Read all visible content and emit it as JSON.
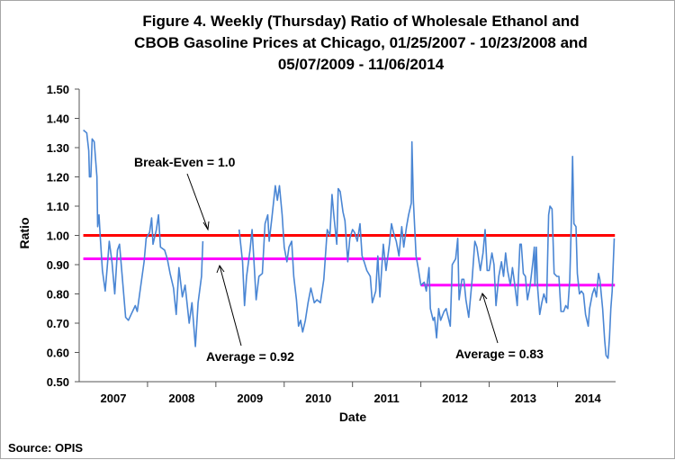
{
  "chart_data": {
    "type": "line",
    "title_lines": [
      "Figure 4. Weekly (Thursday) Ratio of Wholesale Ethanol and",
      "CBOB Gasoline Prices at Chicago, 01/25/2007 - 10/23/2008 and",
      "05/07/2009 - 11/06/2014"
    ],
    "xlabel": "Date",
    "ylabel": "Ratio",
    "ylim": [
      0.5,
      1.5
    ],
    "xlim": [
      2007.0,
      2014.85
    ],
    "yticks": [
      "0.50",
      "0.60",
      "0.70",
      "0.80",
      "0.90",
      "1.00",
      "1.10",
      "1.20",
      "1.30",
      "1.40",
      "1.50"
    ],
    "xticks": [
      "2007",
      "2008",
      "2009",
      "2010",
      "2011",
      "2012",
      "2013",
      "2014"
    ],
    "grid": false,
    "series": [
      {
        "name": "Ratio",
        "color": "#4a86d4",
        "segments": [
          [
            [
              2007.06,
              1.36
            ],
            [
              2007.11,
              1.35
            ],
            [
              2007.14,
              1.29
            ],
            [
              2007.15,
              1.2
            ],
            [
              2007.17,
              1.2
            ],
            [
              2007.19,
              1.33
            ],
            [
              2007.22,
              1.32
            ],
            [
              2007.26,
              1.2
            ],
            [
              2007.27,
              1.03
            ],
            [
              2007.29,
              1.07
            ],
            [
              2007.31,
              0.99
            ],
            [
              2007.34,
              0.88
            ],
            [
              2007.38,
              0.81
            ],
            [
              2007.41,
              0.89
            ],
            [
              2007.44,
              0.98
            ],
            [
              2007.48,
              0.91
            ],
            [
              2007.52,
              0.8
            ],
            [
              2007.56,
              0.95
            ],
            [
              2007.59,
              0.97
            ],
            [
              2007.63,
              0.86
            ],
            [
              2007.68,
              0.72
            ],
            [
              2007.72,
              0.71
            ],
            [
              2007.76,
              0.73
            ],
            [
              2007.82,
              0.76
            ],
            [
              2007.85,
              0.74
            ],
            [
              2007.89,
              0.81
            ],
            [
              2007.95,
              0.91
            ],
            [
              2007.98,
              0.99
            ],
            [
              2008.03,
              1.01
            ],
            [
              2008.06,
              1.06
            ],
            [
              2008.08,
              0.97
            ],
            [
              2008.13,
              1.02
            ],
            [
              2008.16,
              1.07
            ],
            [
              2008.19,
              0.96
            ],
            [
              2008.25,
              0.95
            ],
            [
              2008.29,
              0.92
            ],
            [
              2008.33,
              0.87
            ],
            [
              2008.38,
              0.82
            ],
            [
              2008.42,
              0.73
            ],
            [
              2008.46,
              0.89
            ],
            [
              2008.51,
              0.79
            ],
            [
              2008.55,
              0.83
            ],
            [
              2008.61,
              0.7
            ],
            [
              2008.65,
              0.77
            ],
            [
              2008.7,
              0.62
            ],
            [
              2008.74,
              0.77
            ],
            [
              2008.79,
              0.86
            ],
            [
              2008.81,
              0.98
            ]
          ],
          [
            [
              2009.34,
              1.02
            ],
            [
              2009.39,
              0.91
            ],
            [
              2009.42,
              0.76
            ],
            [
              2009.45,
              0.86
            ],
            [
              2009.5,
              0.95
            ],
            [
              2009.53,
              1.02
            ],
            [
              2009.56,
              0.9
            ],
            [
              2009.59,
              0.78
            ],
            [
              2009.63,
              0.86
            ],
            [
              2009.68,
              0.87
            ],
            [
              2009.72,
              1.04
            ],
            [
              2009.76,
              1.07
            ],
            [
              2009.78,
              0.98
            ],
            [
              2009.82,
              1.06
            ],
            [
              2009.87,
              1.17
            ],
            [
              2009.9,
              1.12
            ],
            [
              2009.93,
              1.17
            ],
            [
              2009.97,
              1.07
            ],
            [
              2010.0,
              0.96
            ],
            [
              2010.04,
              0.91
            ],
            [
              2010.07,
              0.96
            ],
            [
              2010.11,
              0.98
            ],
            [
              2010.14,
              0.86
            ],
            [
              2010.18,
              0.78
            ],
            [
              2010.21,
              0.69
            ],
            [
              2010.24,
              0.71
            ],
            [
              2010.27,
              0.67
            ],
            [
              2010.31,
              0.71
            ],
            [
              2010.35,
              0.77
            ],
            [
              2010.39,
              0.82
            ],
            [
              2010.44,
              0.77
            ],
            [
              2010.48,
              0.78
            ],
            [
              2010.53,
              0.77
            ],
            [
              2010.58,
              0.85
            ],
            [
              2010.63,
              1.02
            ],
            [
              2010.67,
              1.0
            ],
            [
              2010.7,
              1.14
            ],
            [
              2010.73,
              1.06
            ],
            [
              2010.77,
              0.97
            ],
            [
              2010.79,
              1.16
            ],
            [
              2010.82,
              1.15
            ],
            [
              2010.86,
              1.08
            ],
            [
              2010.89,
              1.05
            ],
            [
              2010.93,
              0.91
            ],
            [
              2010.96,
              0.99
            ],
            [
              2011.0,
              1.02
            ],
            [
              2011.03,
              1.01
            ],
            [
              2011.07,
              0.98
            ],
            [
              2011.11,
              1.04
            ],
            [
              2011.14,
              0.93
            ],
            [
              2011.17,
              0.91
            ],
            [
              2011.21,
              0.88
            ],
            [
              2011.26,
              0.86
            ],
            [
              2011.29,
              0.77
            ],
            [
              2011.34,
              0.81
            ],
            [
              2011.37,
              0.93
            ],
            [
              2011.4,
              0.79
            ],
            [
              2011.45,
              0.97
            ],
            [
              2011.49,
              0.88
            ],
            [
              2011.54,
              0.97
            ],
            [
              2011.57,
              1.04
            ],
            [
              2011.6,
              1.01
            ],
            [
              2011.64,
              0.98
            ],
            [
              2011.68,
              0.93
            ],
            [
              2011.72,
              1.03
            ],
            [
              2011.75,
              0.96
            ],
            [
              2011.79,
              1.03
            ],
            [
              2011.82,
              1.07
            ],
            [
              2011.86,
              1.11
            ],
            [
              2011.87,
              1.32
            ],
            [
              2011.89,
              1.12
            ],
            [
              2011.93,
              0.93
            ],
            [
              2011.96,
              0.89
            ],
            [
              2012.0,
              0.83
            ],
            [
              2012.05,
              0.84
            ],
            [
              2012.08,
              0.81
            ],
            [
              2012.12,
              0.89
            ],
            [
              2012.14,
              0.75
            ],
            [
              2012.18,
              0.71
            ],
            [
              2012.2,
              0.72
            ],
            [
              2012.23,
              0.65
            ],
            [
              2012.26,
              0.75
            ],
            [
              2012.29,
              0.71
            ],
            [
              2012.34,
              0.74
            ],
            [
              2012.37,
              0.75
            ],
            [
              2012.4,
              0.72
            ],
            [
              2012.43,
              0.69
            ],
            [
              2012.46,
              0.9
            ],
            [
              2012.51,
              0.92
            ],
            [
              2012.54,
              0.99
            ],
            [
              2012.56,
              0.78
            ],
            [
              2012.6,
              0.85
            ],
            [
              2012.63,
              0.85
            ],
            [
              2012.66,
              0.78
            ],
            [
              2012.7,
              0.72
            ],
            [
              2012.75,
              0.85
            ],
            [
              2012.79,
              0.98
            ],
            [
              2012.82,
              0.96
            ],
            [
              2012.87,
              0.88
            ],
            [
              2012.91,
              0.94
            ],
            [
              2012.94,
              1.02
            ],
            [
              2012.97,
              0.88
            ],
            [
              2013.0,
              0.88
            ],
            [
              2013.04,
              0.94
            ],
            [
              2013.07,
              0.9
            ],
            [
              2013.1,
              0.76
            ],
            [
              2013.14,
              0.86
            ],
            [
              2013.18,
              0.91
            ],
            [
              2013.21,
              0.86
            ],
            [
              2013.24,
              0.94
            ],
            [
              2013.27,
              0.88
            ],
            [
              2013.31,
              0.83
            ],
            [
              2013.34,
              0.89
            ],
            [
              2013.37,
              0.84
            ],
            [
              2013.41,
              0.76
            ],
            [
              2013.45,
              0.97
            ],
            [
              2013.47,
              0.97
            ],
            [
              2013.5,
              0.87
            ],
            [
              2013.53,
              0.86
            ],
            [
              2013.56,
              0.78
            ],
            [
              2013.6,
              0.83
            ],
            [
              2013.64,
              0.91
            ],
            [
              2013.66,
              0.96
            ],
            [
              2013.67,
              0.83
            ],
            [
              2013.69,
              0.96
            ],
            [
              2013.71,
              0.82
            ],
            [
              2013.74,
              0.73
            ],
            [
              2013.77,
              0.77
            ],
            [
              2013.8,
              0.8
            ],
            [
              2013.84,
              0.77
            ],
            [
              2013.87,
              1.07
            ],
            [
              2013.89,
              1.1
            ],
            [
              2013.92,
              1.09
            ],
            [
              2013.95,
              0.87
            ],
            [
              2013.99,
              0.86
            ],
            [
              2014.02,
              0.86
            ],
            [
              2014.05,
              0.74
            ],
            [
              2014.09,
              0.74
            ],
            [
              2014.12,
              0.76
            ],
            [
              2014.15,
              0.75
            ],
            [
              2014.18,
              0.85
            ],
            [
              2014.2,
              1.02
            ],
            [
              2014.22,
              1.27
            ],
            [
              2014.24,
              1.04
            ],
            [
              2014.27,
              1.03
            ],
            [
              2014.29,
              0.87
            ],
            [
              2014.32,
              0.8
            ],
            [
              2014.35,
              0.81
            ],
            [
              2014.38,
              0.8
            ],
            [
              2014.41,
              0.73
            ],
            [
              2014.45,
              0.69
            ],
            [
              2014.47,
              0.75
            ],
            [
              2014.51,
              0.8
            ],
            [
              2014.54,
              0.82
            ],
            [
              2014.57,
              0.79
            ],
            [
              2014.6,
              0.87
            ],
            [
              2014.62,
              0.85
            ],
            [
              2014.66,
              0.75
            ],
            [
              2014.69,
              0.64
            ],
            [
              2014.71,
              0.59
            ],
            [
              2014.74,
              0.58
            ],
            [
              2014.76,
              0.65
            ],
            [
              2014.78,
              0.75
            ],
            [
              2014.8,
              0.81
            ],
            [
              2014.83,
              0.99
            ]
          ]
        ]
      }
    ],
    "reference_lines": [
      {
        "name": "break-even",
        "value": 1.0,
        "from": 2007.06,
        "to": 2014.84,
        "color": "#ff0000",
        "label": "Break-Even = 1.0"
      },
      {
        "name": "average-2007-2011",
        "value": 0.92,
        "from": 2007.06,
        "to": 2012.0,
        "color": "#ff00ff",
        "label": "Average = 0.92"
      },
      {
        "name": "average-2012-2014",
        "value": 0.83,
        "from": 2012.0,
        "to": 2014.84,
        "color": "#ff00ff",
        "label": "Average = 0.83"
      }
    ],
    "source": "Source: OPIS"
  }
}
